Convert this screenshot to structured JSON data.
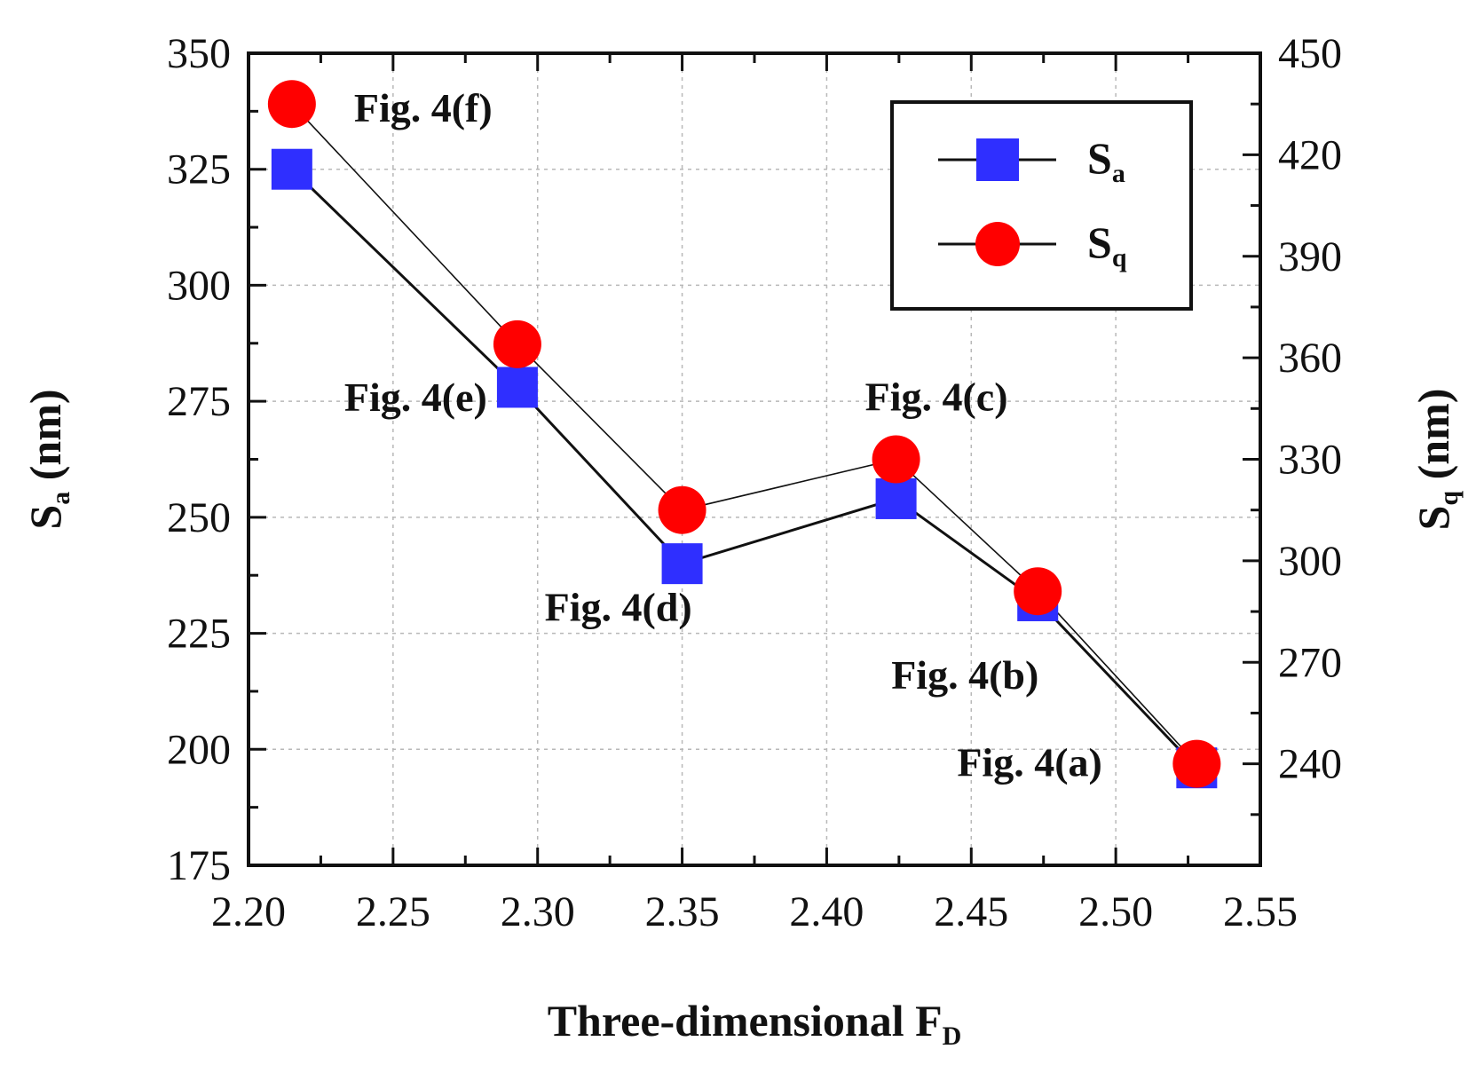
{
  "chart_data": {
    "type": "line",
    "x": [
      2.215,
      2.293,
      2.35,
      2.424,
      2.473,
      2.528
    ],
    "xlabel": {
      "main": "Three-dimensional F",
      "sub": "D"
    },
    "xlim": [
      2.2,
      2.55
    ],
    "xticks": [
      "2.20",
      "2.25",
      "2.30",
      "2.35",
      "2.40",
      "2.45",
      "2.50",
      "2.55"
    ],
    "ylabel_left": {
      "main": "S",
      "sub": "a",
      "unit": " (nm)"
    },
    "ylim_left": [
      175,
      350
    ],
    "yticks_left": [
      "175",
      "200",
      "225",
      "250",
      "275",
      "300",
      "325",
      "350"
    ],
    "ylabel_right": {
      "main": "S",
      "sub": "q",
      "unit": " (nm)"
    },
    "ylim_right": [
      210,
      450
    ],
    "yticks_right": [
      "240",
      "270",
      "300",
      "330",
      "360",
      "390",
      "420",
      "450"
    ],
    "grid": true,
    "series": [
      {
        "name": "S",
        "name_sub": "a",
        "axis": "left",
        "marker": "square",
        "color": "#2f2fff",
        "values": [
          325,
          278,
          240,
          254,
          232,
          196
        ]
      },
      {
        "name": "S",
        "name_sub": "q",
        "axis": "right",
        "marker": "circle",
        "color": "#ff0000",
        "values": [
          435,
          364,
          315,
          330,
          291,
          240
        ]
      }
    ],
    "legend_position": "top-right",
    "annotations": [
      {
        "text": "Fig. 4(f)",
        "point": 0
      },
      {
        "text": "Fig. 4(e)",
        "point": 1
      },
      {
        "text": "Fig. 4(d)",
        "point": 2
      },
      {
        "text": "Fig. 4(c)",
        "point": 3
      },
      {
        "text": "Fig. 4(b)",
        "point": 4
      },
      {
        "text": "Fig. 4(a)",
        "point": 5
      }
    ]
  }
}
